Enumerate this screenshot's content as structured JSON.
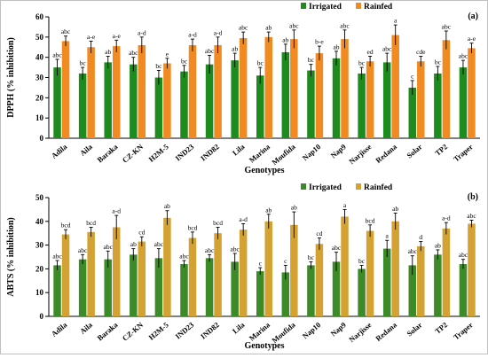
{
  "chart_data": [
    {
      "type": "bar",
      "panel_label": "(a)",
      "ylabel": "DPPH (% inhibition)",
      "xlabel": "Genotypes",
      "ylim": [
        0,
        60
      ],
      "yticks": [
        0,
        10,
        20,
        30,
        40,
        50,
        60
      ],
      "legend_position": "top-right",
      "categories": [
        "Adila",
        "Aila",
        "Baraka",
        "CZ-KN",
        "H2M-5",
        "IND23",
        "IND82",
        "Lila",
        "Marina",
        "Moufida",
        "Nap10",
        "Nap9",
        "Narjisse",
        "Redana",
        "Solar",
        "TP2",
        "Traper"
      ],
      "series": [
        {
          "name": "Irrigated",
          "color": "#1e8b1e",
          "values": [
            35,
            32,
            37.5,
            36.5,
            30,
            33,
            36.5,
            38.5,
            31,
            42.5,
            33.5,
            39.5,
            32,
            37.5,
            25,
            32,
            35
          ],
          "errors": [
            4,
            3,
            3,
            3.5,
            3.5,
            3,
            4.5,
            3.5,
            4,
            4,
            3,
            3.5,
            3,
            4.5,
            3.5,
            3.5,
            3.5
          ],
          "labels": [
            "abc",
            "bc",
            "ab",
            "abc",
            "bc",
            "bc",
            "abc",
            "ab",
            "bc",
            "ab",
            "bc",
            "ab",
            "bc",
            "abc",
            "c",
            "bc",
            "abc"
          ]
        },
        {
          "name": "Rainfed",
          "color": "#f28a22",
          "values": [
            48,
            45,
            45.5,
            46,
            37,
            46,
            46,
            49.5,
            50,
            49,
            42,
            49,
            38,
            51,
            38,
            48.5,
            44.5
          ],
          "errors": [
            2.5,
            3,
            3,
            4,
            2.5,
            3,
            4,
            3,
            2.5,
            4.5,
            3.5,
            4.5,
            2.5,
            5,
            2.5,
            4.5,
            2.5
          ],
          "labels": [
            "abc",
            "a-e",
            "a-e",
            "a-d",
            "e",
            "a-d",
            "a-d",
            "abc",
            "ab",
            "abc",
            "b-e",
            "abc",
            "ed",
            "a",
            "cde",
            "abc",
            "a-e"
          ]
        }
      ]
    },
    {
      "type": "bar",
      "panel_label": "(b)",
      "ylabel": "ABTS (% inhibition)",
      "xlabel": "Genotypes",
      "ylim": [
        0,
        50
      ],
      "yticks": [
        0,
        10,
        20,
        30,
        40,
        50
      ],
      "legend_position": "top-right",
      "categories": [
        "Adila",
        "Aila",
        "Baraka",
        "CZ-KN",
        "H2M-5",
        "IND23",
        "IND82",
        "Lila",
        "Marina",
        "Moufida",
        "Nap10",
        "Nap9",
        "Narjisse",
        "Redana",
        "Solar",
        "TP2",
        "Traper"
      ],
      "series": [
        {
          "name": "Irrigated",
          "color": "#3c8a28",
          "values": [
            21.5,
            24,
            24,
            26,
            24.5,
            22,
            24.5,
            23,
            19,
            18.5,
            21.5,
            23,
            20,
            28.5,
            21.5,
            26,
            22
          ],
          "errors": [
            2,
            2,
            3.5,
            2.5,
            4,
            1.5,
            1.5,
            3.5,
            1.5,
            3,
            1.5,
            4,
            1.5,
            3.5,
            4,
            2,
            2
          ],
          "labels": [
            "abc",
            "abc",
            "abc",
            "ab",
            "abc",
            "abc",
            "abc",
            "abc",
            "c",
            "c",
            "bc",
            "abc",
            "bc",
            "a",
            "abc",
            "ab",
            "abc"
          ]
        },
        {
          "name": "Rainfed",
          "color": "#d4a232",
          "values": [
            34.5,
            35.5,
            37.5,
            31.5,
            41.5,
            33,
            35,
            36.5,
            40,
            38.5,
            30.5,
            42,
            36,
            40,
            29.5,
            37,
            39
          ],
          "errors": [
            2,
            2,
            5,
            2,
            3,
            2.5,
            2.5,
            2.5,
            3,
            5.5,
            2.5,
            3,
            2.5,
            3.5,
            2,
            2.5,
            1.5
          ],
          "labels": [
            "bcd",
            "bcd",
            "a-d",
            "cd",
            "ab",
            "bcd",
            "bcd",
            "a-d",
            "ab",
            "ab",
            "cd",
            "a",
            "bcd",
            "ab",
            "d",
            "a-d",
            "abc"
          ]
        }
      ]
    }
  ]
}
